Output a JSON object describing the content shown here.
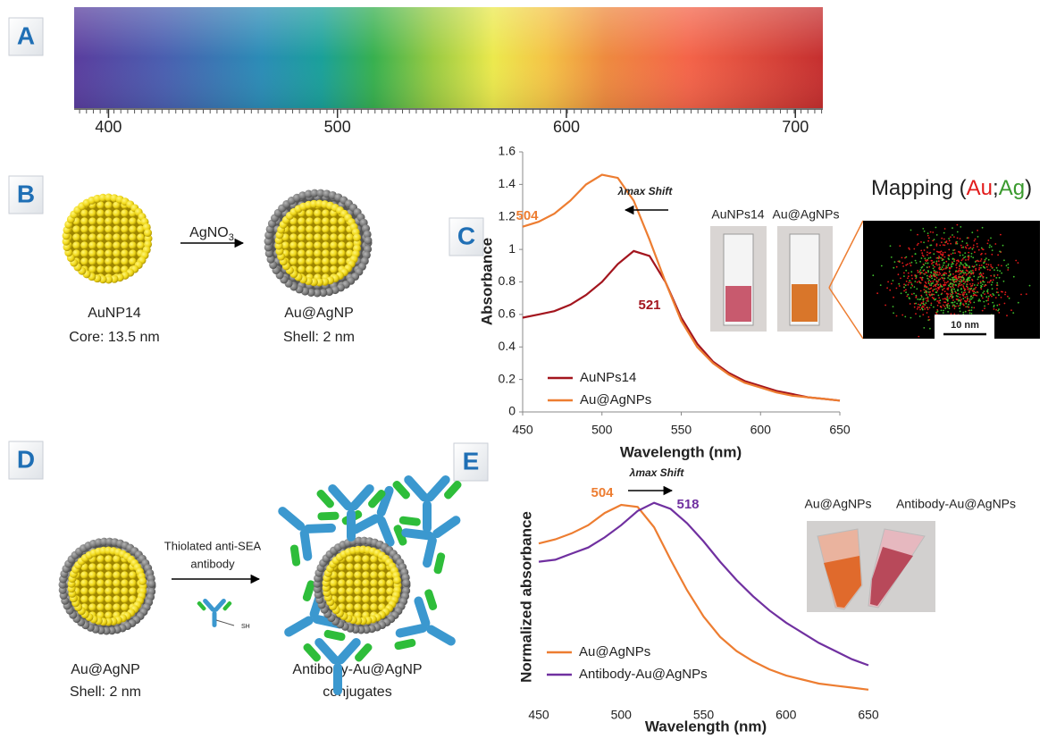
{
  "panels": {
    "a": {
      "label": "A",
      "spectrum": {
        "xlim": [
          385,
          712
        ],
        "xticks": [
          400,
          500,
          600,
          700
        ]
      }
    },
    "b": {
      "label": "B",
      "reagent": "AgNO",
      "reagent_subscript": "3",
      "core": {
        "name": "AuNP14",
        "size": "Core: 13.5 nm"
      },
      "shell": {
        "name": "Au@AgNP",
        "size": "Shell: 2 nm"
      }
    },
    "c": {
      "label": "C",
      "photos": [
        "AuNPs14",
        "Au@AgNPs"
      ],
      "mapping_title": [
        "Mapping (",
        "Au",
        ";",
        "Ag",
        ")"
      ],
      "scale_bar": "10 nm"
    },
    "d": {
      "label": "D",
      "reagent": [
        "Thiolated anti-SEA",
        "antibody"
      ],
      "thiol": "SH",
      "start": {
        "name": "Au@AgNP",
        "size": "Shell: 2 nm"
      },
      "product": {
        "name": "Antibody-Au@AgNP",
        "size": "conjugates"
      }
    },
    "e": {
      "label": "E",
      "photos": [
        "Au@AgNPs",
        "Antibody-Au@AgNPs"
      ]
    }
  },
  "chart_data": [
    {
      "type": "line",
      "x_label": "Wavelength (nm)",
      "y_label": "Absorbance",
      "x": [
        450,
        460,
        470,
        480,
        490,
        500,
        510,
        520,
        530,
        540,
        550,
        560,
        570,
        580,
        590,
        600,
        610,
        620,
        630,
        640,
        650
      ],
      "xlim": [
        450,
        650
      ],
      "xticks": [
        450,
        500,
        550,
        600,
        650
      ],
      "ylim": [
        0,
        1.6
      ],
      "yticks": [
        0,
        0.2,
        0.4,
        0.6,
        0.8,
        1,
        1.2,
        1.4,
        1.6
      ],
      "legend": "lower left",
      "annotations": [
        "λmax Shift",
        "504",
        "521"
      ],
      "series": [
        {
          "name": "AuNPs14",
          "color": "#a3151e",
          "values": [
            0.58,
            0.6,
            0.62,
            0.66,
            0.72,
            0.8,
            0.91,
            0.99,
            0.96,
            0.8,
            0.58,
            0.42,
            0.31,
            0.24,
            0.19,
            0.16,
            0.13,
            0.11,
            0.09,
            0.08,
            0.07
          ]
        },
        {
          "name": "Au@AgNPs",
          "color": "#ed7d31",
          "values": [
            1.14,
            1.17,
            1.22,
            1.3,
            1.4,
            1.46,
            1.44,
            1.3,
            1.06,
            0.8,
            0.56,
            0.4,
            0.3,
            0.23,
            0.18,
            0.15,
            0.12,
            0.1,
            0.09,
            0.08,
            0.07
          ]
        }
      ]
    },
    {
      "type": "line",
      "x_label": "Wavelength (nm)",
      "y_label": "Normalized absorbance",
      "x": [
        450,
        460,
        470,
        480,
        490,
        500,
        510,
        520,
        530,
        540,
        550,
        560,
        570,
        580,
        590,
        600,
        610,
        620,
        630,
        640,
        650
      ],
      "xlim": [
        450,
        650
      ],
      "xticks": [
        450,
        500,
        550,
        600,
        650
      ],
      "ylim": [
        0,
        1.1
      ],
      "legend": "lower left",
      "annotations": [
        "λmax Shift",
        "504",
        "518"
      ],
      "series": [
        {
          "name": "Au@AgNPs",
          "color": "#ed7d31",
          "values": [
            0.8,
            0.82,
            0.85,
            0.89,
            0.95,
            0.99,
            0.98,
            0.88,
            0.72,
            0.57,
            0.44,
            0.34,
            0.27,
            0.22,
            0.18,
            0.15,
            0.13,
            0.11,
            0.1,
            0.09,
            0.08
          ]
        },
        {
          "name": "Antibody-Au@AgNPs",
          "color": "#7030a0",
          "values": [
            0.71,
            0.72,
            0.75,
            0.78,
            0.83,
            0.89,
            0.96,
            1.0,
            0.97,
            0.9,
            0.81,
            0.71,
            0.62,
            0.54,
            0.47,
            0.41,
            0.36,
            0.31,
            0.27,
            0.23,
            0.2
          ]
        }
      ]
    }
  ]
}
